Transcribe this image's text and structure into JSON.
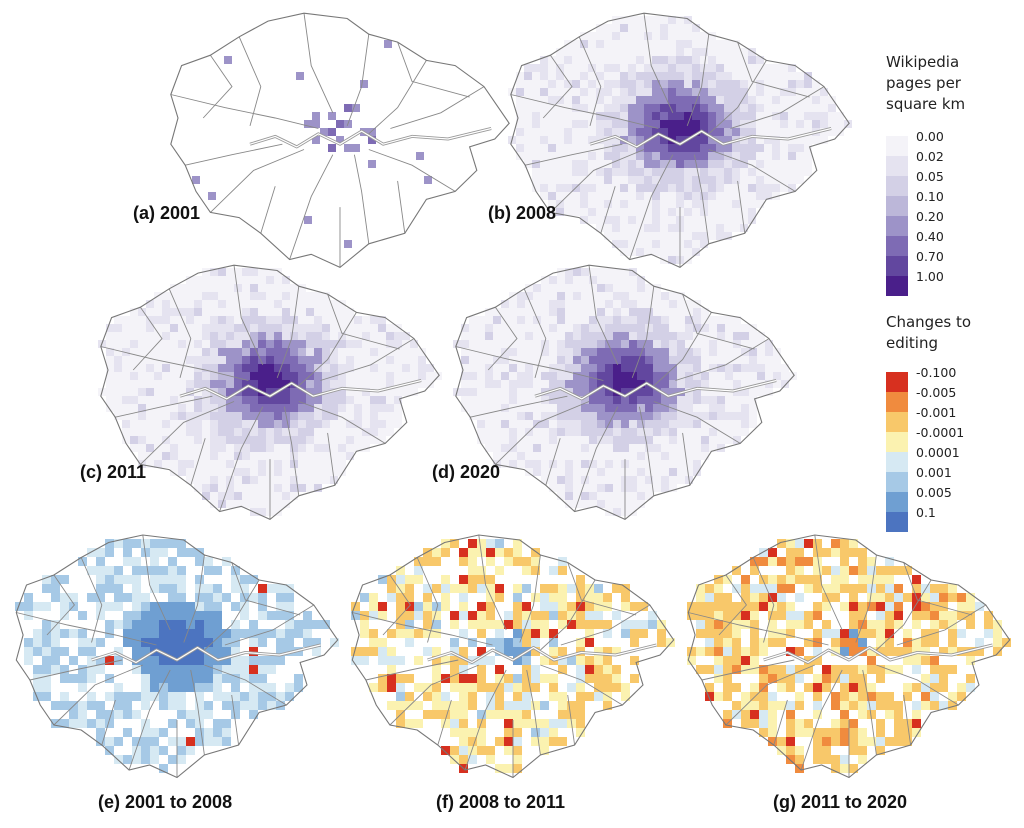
{
  "maps": [
    {
      "caption": "(a) 2001",
      "palette": "density",
      "seed": 11,
      "mode": "sparse"
    },
    {
      "caption": "(b) 2008",
      "palette": "density",
      "seed": 23,
      "mode": "density"
    },
    {
      "caption": "(c) 2011",
      "palette": "density",
      "seed": 37,
      "mode": "density"
    },
    {
      "caption": "(d) 2020",
      "palette": "density",
      "seed": 41,
      "mode": "density"
    },
    {
      "caption": "(e) 2001 to 2008",
      "palette": "change",
      "seed": 53,
      "mode": "increase"
    },
    {
      "caption": "(f) 2008 to 2011",
      "palette": "change",
      "seed": 67,
      "mode": "mixed"
    },
    {
      "caption": "(g) 2011 to 2020",
      "palette": "change",
      "seed": 79,
      "mode": "decrease"
    }
  ],
  "density_legend": {
    "title_lines": [
      "Wikipedia",
      "pages per",
      "square km"
    ],
    "labels": [
      "0.00",
      "0.02",
      "0.05",
      "0.10",
      "0.20",
      "0.40",
      "0.70",
      "1.00"
    ],
    "colors": [
      "#f4f3f8",
      "#e5e3f0",
      "#d3d0e6",
      "#bcb7d9",
      "#9d93c8",
      "#7e6bb4",
      "#62479f",
      "#4a1f8a"
    ]
  },
  "change_legend": {
    "title_lines": [
      "Changes to",
      "editing"
    ],
    "labels": [
      "-0.100",
      "-0.005",
      "-0.001",
      "-0.0001",
      "0.0001",
      "0.001",
      "0.005",
      "0.1"
    ],
    "colors": [
      "#d7301f",
      "#f08b3e",
      "#f8c86a",
      "#fbf2b0",
      "#d6e9f3",
      "#a6c9e6",
      "#6f9fd2",
      "#4c74c0"
    ]
  }
}
